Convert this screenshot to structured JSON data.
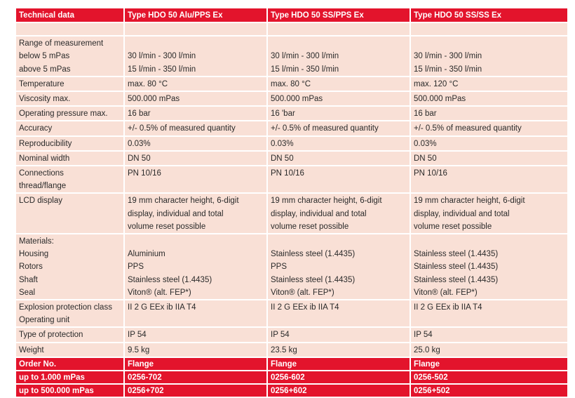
{
  "header": [
    "Technical data",
    "Type HDO 50 Alu/PPS Ex",
    "Type HDO 50 SS/PPS Ex",
    "Type HDO 50 SS/SS Ex"
  ],
  "rows": [
    {
      "label": [
        "Range of measurement",
        "below 5 mPas",
        "above 5 mPas"
      ],
      "values": [
        [
          "",
          "30 l/min - 300 l/min",
          "15 l/min - 350 l/min"
        ],
        [
          "",
          "30 l/min - 300 l/min",
          "15 l/min - 350 l/min"
        ],
        [
          "",
          "30 l/min - 300 l/min",
          "15 l/min - 350 l/min"
        ]
      ]
    },
    {
      "label": [
        "Temperature"
      ],
      "values": [
        [
          "max. 80 °C"
        ],
        [
          "max. 80 °C"
        ],
        [
          "max. 120 °C"
        ]
      ]
    },
    {
      "label": [
        "Viscosity max."
      ],
      "values": [
        [
          "500.000 mPas"
        ],
        [
          "500.000 mPas"
        ],
        [
          "500.000 mPas"
        ]
      ]
    },
    {
      "label": [
        "Operating pressure max."
      ],
      "values": [
        [
          "16 bar"
        ],
        [
          "16 'bar"
        ],
        [
          "16 bar"
        ]
      ]
    },
    {
      "label": [
        "Accuracy"
      ],
      "values": [
        [
          "+/- 0.5% of measured quantity"
        ],
        [
          "+/- 0.5% of measured quantity"
        ],
        [
          "+/- 0.5% of measured quantity"
        ]
      ]
    },
    {
      "label": [
        "Reproducibility"
      ],
      "values": [
        [
          "0.03%"
        ],
        [
          "0.03%"
        ],
        [
          "0.03%"
        ]
      ]
    },
    {
      "label": [
        "Nominal width"
      ],
      "values": [
        [
          "DN 50"
        ],
        [
          "DN 50"
        ],
        [
          "DN 50"
        ]
      ]
    },
    {
      "label": [
        "Connections",
        "thread/flange"
      ],
      "values": [
        [
          "PN 10/16"
        ],
        [
          "PN 10/16"
        ],
        [
          "PN 10/16"
        ]
      ]
    },
    {
      "label": [
        "LCD display"
      ],
      "values": [
        [
          "19 mm character height, 6-digit",
          "display, individual and total",
          "volume reset possible"
        ],
        [
          "19 mm character height, 6-digit",
          "display, individual and total",
          "volume reset possible"
        ],
        [
          "19 mm character height, 6-digit",
          "display, individual and total",
          "volume reset possible"
        ]
      ]
    },
    {
      "label": [
        "Materials:",
        "Housing",
        "Rotors",
        "Shaft",
        "Seal"
      ],
      "values": [
        [
          "",
          "Aluminium",
          "PPS",
          "Stainless steel (1.4435)",
          "Viton® (alt. FEP*)"
        ],
        [
          "",
          "Stainless steel (1.4435)",
          "PPS",
          "Stainless steel (1.4435)",
          "Viton® (alt. FEP*)"
        ],
        [
          "",
          "Stainless steel (1.4435)",
          "Stainless steel (1.4435)",
          "Stainless steel (1.4435)",
          "Viton® (alt. FEP*)"
        ]
      ]
    },
    {
      "label": [
        "Explosion protection class",
        "Operating unit"
      ],
      "values": [
        [
          "II 2 G EEx ib IIA T4"
        ],
        [
          "II 2 G EEx ib IIA T4"
        ],
        [
          "II 2 G EEx ib IIA T4"
        ]
      ]
    },
    {
      "label": [
        "Type of protection"
      ],
      "values": [
        [
          "IP 54"
        ],
        [
          "IP 54"
        ],
        [
          "IP 54"
        ]
      ]
    },
    {
      "label": [
        "Weight"
      ],
      "values": [
        [
          "9.5 kg"
        ],
        [
          "23.5 kg"
        ],
        [
          "25.0 kg"
        ]
      ]
    }
  ],
  "order": [
    {
      "label": "Order No.",
      "values": [
        "Flange",
        "Flange",
        "Flange"
      ]
    },
    {
      "label": "up to 1.000 mPas",
      "values": [
        "0256-702",
        "0256-602",
        "0256-502"
      ]
    },
    {
      "label": "up to 500.000 mPas",
      "values": [
        "0256+702",
        "0256+602",
        "0256+502"
      ]
    }
  ]
}
